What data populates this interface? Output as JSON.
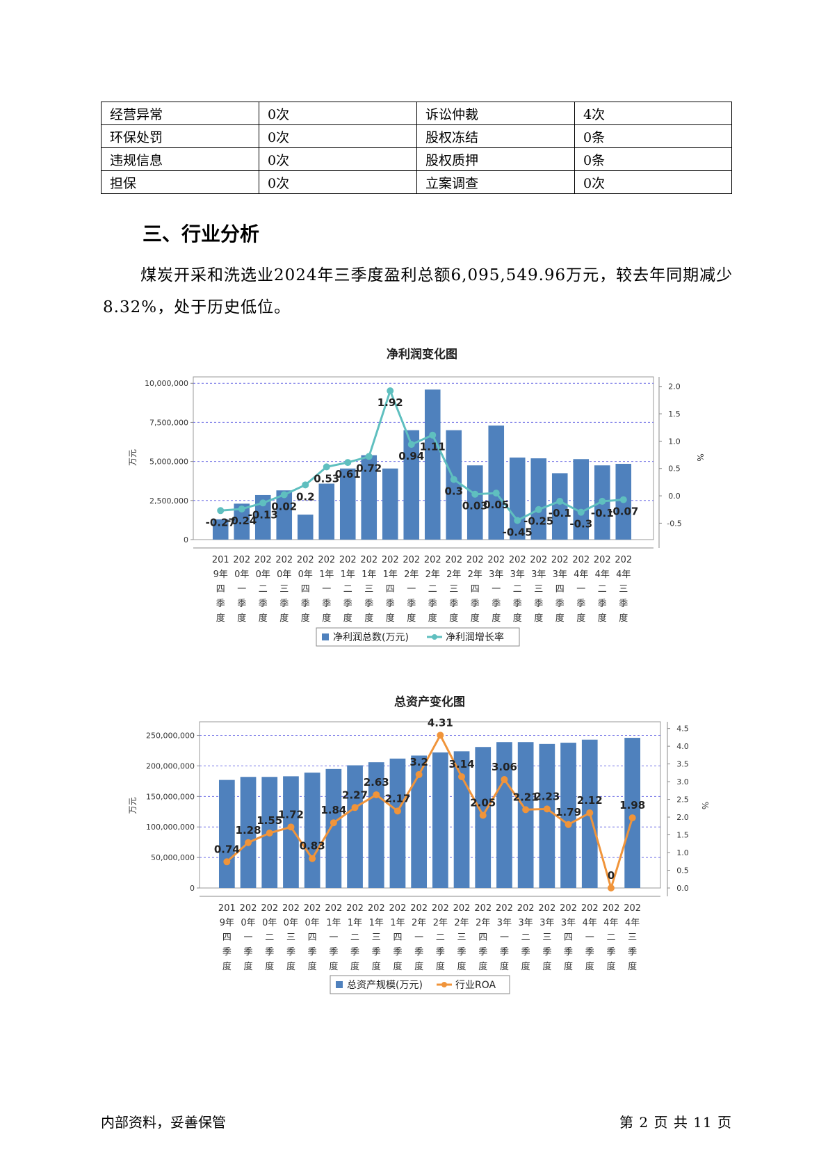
{
  "risk_table": [
    [
      "经营异常",
      "0次",
      "诉讼仲裁",
      "4次"
    ],
    [
      "环保处罚",
      "0次",
      "股权冻结",
      "0条"
    ],
    [
      "违规信息",
      "0次",
      "股权质押",
      "0条"
    ],
    [
      "担保",
      "0次",
      "立案调查",
      "0次"
    ]
  ],
  "section_title": "三、行业分析",
  "paragraph": "煤炭开采和洗选业2024年三季度盈利总额6,095,549.96万元，较去年同期减少8.32%，处于历史低位。",
  "footer": {
    "left": "内部资料，妥善保管",
    "right": "第 2 页   共 11 页"
  },
  "chart_data": [
    {
      "type": "bar",
      "title": "净利润变化图",
      "ylabel": "万元",
      "y2label": "%",
      "ylim": [
        0,
        10500000
      ],
      "y2lim": [
        -0.8,
        2.2
      ],
      "yticks": [
        "0",
        "2,500,000",
        "5,000,000",
        "7,500,000",
        "10,000,000"
      ],
      "y2ticks": [
        "-0.5",
        "0.0",
        "0.5",
        "1.0",
        "1.5",
        "2.0"
      ],
      "categories": [
        "2019年四季度",
        "2020年一季度",
        "2020年二季度",
        "2020年三季度",
        "2020年四季度",
        "2021年一季度",
        "2021年二季度",
        "2021年三季度",
        "2021年四季度",
        "2022年一季度",
        "2022年二季度",
        "2022年三季度",
        "2022年四季度",
        "2023年一季度",
        "2023年二季度",
        "2023年三季度",
        "2023年四季度",
        "2024年一季度",
        "2024年二季度",
        "2024年三季度"
      ],
      "series": [
        {
          "name": "净利润总数(万元)",
          "type": "bar",
          "axis": "left",
          "color": "#4f81bd",
          "values": [
            1300000,
            2300000,
            2850000,
            3150000,
            1600000,
            3580000,
            4550000,
            5400000,
            4550000,
            7000000,
            9600000,
            7000000,
            4750000,
            7300000,
            5250000,
            5200000,
            4250000,
            5150000,
            4750000,
            4850000
          ]
        },
        {
          "name": "净利润增长率",
          "type": "line",
          "axis": "right",
          "color": "#5fbfbf",
          "values": [
            -0.27,
            -0.24,
            -0.13,
            0.02,
            0.2,
            0.53,
            0.61,
            0.72,
            1.92,
            0.94,
            1.11,
            0.3,
            0.03,
            0.05,
            -0.45,
            -0.25,
            -0.1,
            -0.3,
            -0.1,
            -0.07
          ],
          "labels": [
            "-0.27",
            "-0.24",
            "-0.13",
            "0.02",
            "0.2",
            "0.53",
            "0.61",
            "0.72",
            "1.92",
            "0.94",
            "1.11",
            "0.3",
            "0.03",
            "0.05",
            "-0.45",
            "-0.25",
            "-0.1",
            "-0.3",
            "-0.1",
            "-0.07"
          ]
        }
      ],
      "grid": true,
      "legend": "bottom"
    },
    {
      "type": "bar",
      "title": "总资产变化图",
      "ylabel": "万元",
      "y2label": "%",
      "ylim": [
        0,
        270000000
      ],
      "y2lim": [
        0,
        4.65
      ],
      "yticks": [
        "0",
        "50,000,000",
        "100,000,000",
        "150,000,000",
        "200,000,000",
        "250,000,000"
      ],
      "y2ticks": [
        "0.0",
        "0.5",
        "1.0",
        "1.5",
        "2.0",
        "2.5",
        "3.0",
        "3.5",
        "4.0",
        "4.5"
      ],
      "categories": [
        "2019年四季度",
        "2020年一季度",
        "2020年二季度",
        "2020年三季度",
        "2020年四季度",
        "2021年一季度",
        "2021年二季度",
        "2021年三季度",
        "2021年四季度",
        "2022年一季度",
        "2022年二季度",
        "2022年三季度",
        "2022年四季度",
        "2023年一季度",
        "2023年二季度",
        "2023年三季度",
        "2023年四季度",
        "2024年一季度",
        "2024年二季度",
        "2024年三季度"
      ],
      "series": [
        {
          "name": "总资产规模(万元)",
          "type": "bar",
          "axis": "left",
          "color": "#4f81bd",
          "values": [
            177000000,
            182000000,
            182000000,
            183000000,
            189000000,
            195000000,
            201000000,
            206000000,
            212000000,
            217000000,
            222000000,
            224000000,
            231000000,
            239000000,
            239000000,
            236000000,
            238000000,
            243000000,
            null,
            246000000
          ]
        },
        {
          "name": "行业ROA",
          "type": "line",
          "axis": "right",
          "color": "#f0943a",
          "values": [
            0.74,
            1.28,
            1.55,
            1.72,
            0.83,
            1.84,
            2.27,
            2.63,
            2.17,
            3.2,
            4.31,
            3.14,
            2.05,
            3.06,
            2.21,
            2.23,
            1.79,
            2.12,
            0,
            1.98
          ],
          "labels": [
            "0.74",
            "1.28",
            "1.55",
            "1.72",
            "0.83",
            "1.84",
            "2.27",
            "2.63",
            "2.17",
            "3.2",
            "4.31",
            "3.14",
            "2.05",
            "3.06",
            "2.21",
            "2.23",
            "1.79",
            "2.12",
            "0",
            "1.98"
          ]
        }
      ],
      "grid": true,
      "legend": "bottom"
    }
  ]
}
